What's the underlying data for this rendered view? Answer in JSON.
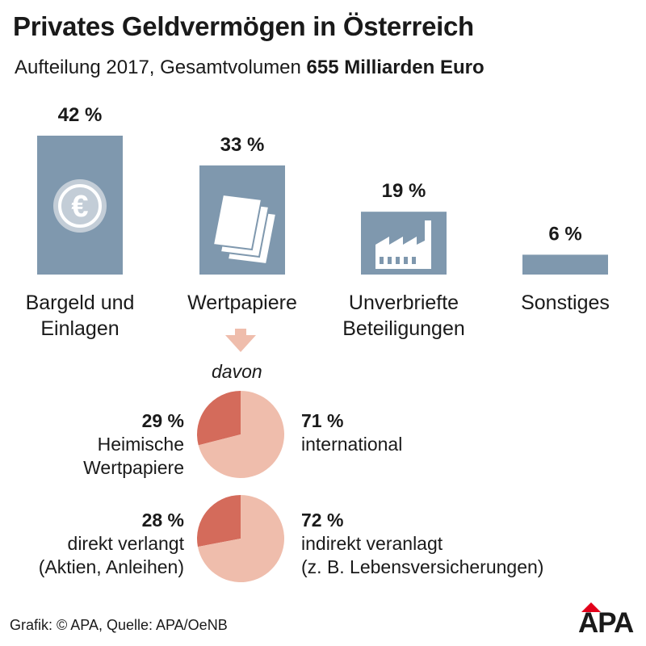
{
  "header": {
    "title": "Privates Geldvermögen in Österreich",
    "subtitle_prefix": "Aufteilung 2017, Gesamtvolumen ",
    "subtitle_bold": "655 Milliarden Euro"
  },
  "chart_data": {
    "type": "bar",
    "title": "Privates Geldvermögen in Österreich",
    "subtitle": "Aufteilung 2017, Gesamtvolumen 655 Milliarden Euro",
    "categories": [
      [
        "Bargeld und",
        "Einlagen"
      ],
      [
        "Wertpapiere"
      ],
      [
        "Unverbriefte",
        "Beteiligungen"
      ],
      [
        "Sonstiges"
      ]
    ],
    "values": [
      42,
      33,
      19,
      6
    ],
    "value_labels": [
      "42 %",
      "33 %",
      "19 %",
      "6 %"
    ],
    "icons": [
      "euro-coin-icon",
      "documents-icon",
      "factory-icon",
      ""
    ],
    "bar_color": "#7f98ae",
    "ylim": [
      0,
      42
    ],
    "davon_label": "davon",
    "pies": [
      {
        "left_pct": "29 %",
        "left_label": [
          "Heimische",
          "Wertpapiere"
        ],
        "right_pct": "71 %",
        "right_label": [
          "international"
        ],
        "values": [
          29,
          71
        ]
      },
      {
        "left_pct": "28 %",
        "left_label": [
          "direkt verlangt",
          "(Aktien, Anleihen)"
        ],
        "right_pct": "72 %",
        "right_label": [
          "indirekt veranlagt",
          "(z. B. Lebensversicherungen)"
        ],
        "values": [
          28,
          72
        ]
      }
    ],
    "pie_colors": [
      "#d46b5b",
      "#efbdac"
    ],
    "arrow_color": "#efbdac"
  },
  "footer": {
    "source": "Grafik: © APA, Quelle: APA/OeNB",
    "logo": "APA",
    "logo_accent": "#e2001a"
  }
}
